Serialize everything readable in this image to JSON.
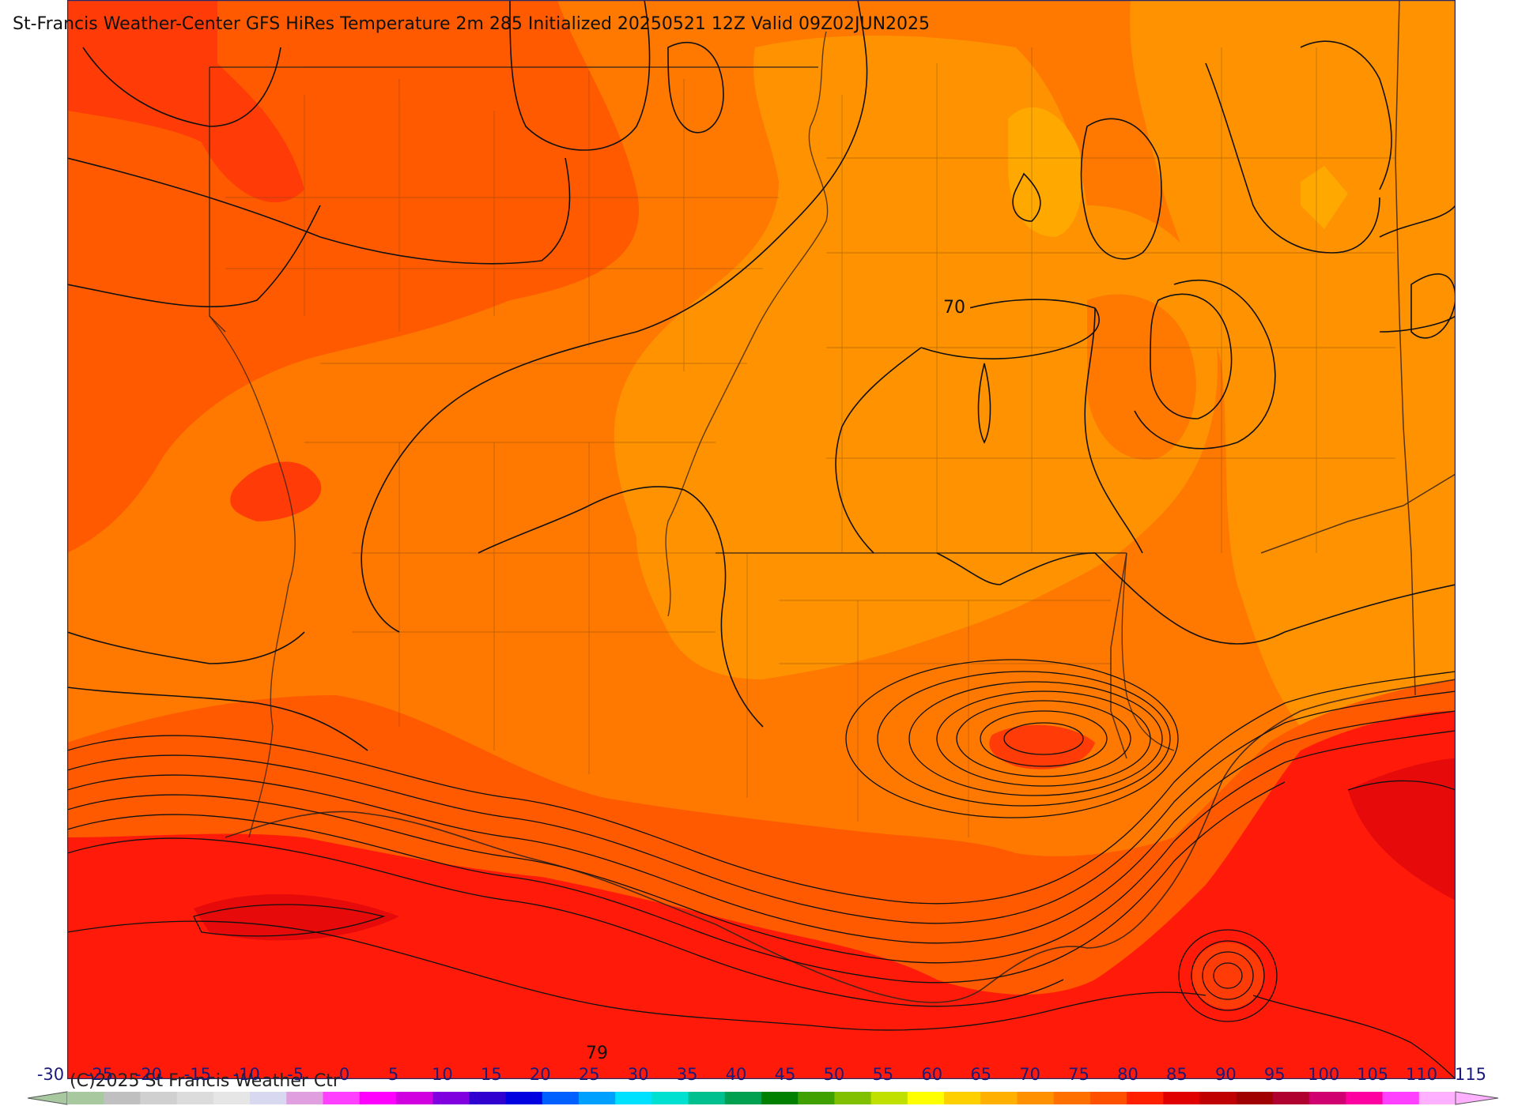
{
  "title": "St-Francis Weather-Center GFS HiRes Temperature 2m  285 Initialized 20250521 12Z Valid 09Z02JUN2025",
  "copyright": "(C)2025 St Francis Weather Ctr",
  "contour_labels": [
    "70",
    "79"
  ],
  "colorbar": {
    "ticks": [
      "-30",
      "-25",
      "-20",
      "-15",
      "-10",
      "-5",
      "0",
      "5",
      "10",
      "15",
      "20",
      "25",
      "30",
      "35",
      "40",
      "45",
      "50",
      "55",
      "60",
      "65",
      "70",
      "75",
      "80",
      "85",
      "90",
      "95",
      "100",
      "105",
      "110",
      "115"
    ],
    "colors": [
      "#a8c8a0",
      "#c0c0c0",
      "#d0d0d0",
      "#dcdcdc",
      "#e6e6e6",
      "#d8d8f0",
      "#e0a0e0",
      "#ff40ff",
      "#ff00ff",
      "#d000e0",
      "#8000e0",
      "#3000d0",
      "#0000e0",
      "#0060ff",
      "#00a0ff",
      "#00e0ff",
      "#00e0d0",
      "#00c090",
      "#00a050",
      "#008000",
      "#40a000",
      "#80c000",
      "#c0e000",
      "#ffff00",
      "#ffd000",
      "#ffb000",
      "#ff9000",
      "#ff7000",
      "#ff5000",
      "#ff2000",
      "#e00000",
      "#c00000",
      "#a00000",
      "#b00030",
      "#d00070",
      "#ff00a0",
      "#ff40ff",
      "#ffb0ff"
    ]
  },
  "colors": {
    "deep_red": "#ff1a0a",
    "red": "#ff3008",
    "red_orange": "#ff5a00",
    "orange": "#ff7800",
    "light_orange": "#ff9200",
    "amber": "#ffa800",
    "dark_red": "#e60a0a"
  }
}
